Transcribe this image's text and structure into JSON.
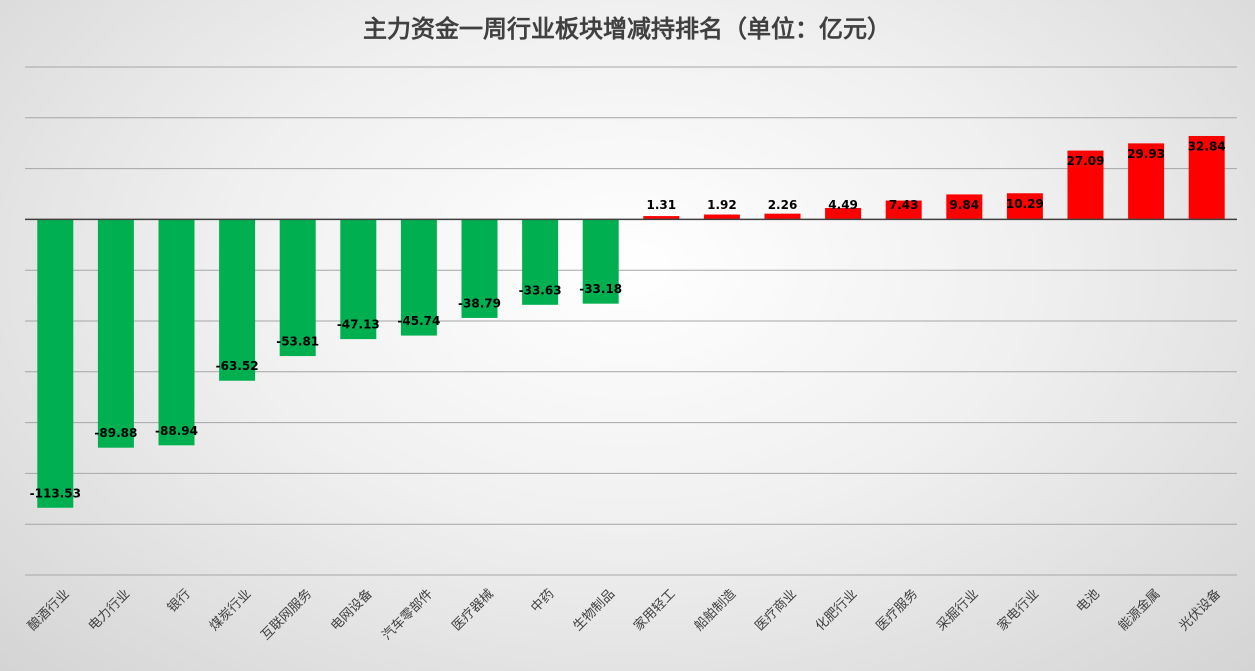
{
  "chart_data": {
    "type": "bar",
    "title": "主力资金一周行业板块增减持排名（单位：亿元）",
    "categories": [
      "酿酒行业",
      "电力行业",
      "银行",
      "煤炭行业",
      "互联网服务",
      "电网设备",
      "汽车零部件",
      "医疗器械",
      "中药",
      "生物制品",
      "家用轻工",
      "船舶制造",
      "医疗商业",
      "化肥行业",
      "医疗服务",
      "采掘行业",
      "家电行业",
      "电池",
      "能源金属",
      "光伏设备"
    ],
    "values": [
      -113.53,
      -89.88,
      -88.94,
      -63.52,
      -53.81,
      -47.13,
      -45.74,
      -38.79,
      -33.63,
      -33.18,
      1.31,
      1.92,
      2.26,
      4.49,
      7.43,
      9.84,
      10.29,
      27.09,
      29.93,
      32.84
    ],
    "colors": [
      "#00b050",
      "#00b050",
      "#00b050",
      "#00b050",
      "#00b050",
      "#00b050",
      "#00b050",
      "#00b050",
      "#00b050",
      "#00b050",
      "#ff0000",
      "#ff0000",
      "#ff0000",
      "#ff0000",
      "#ff0000",
      "#ff0000",
      "#ff0000",
      "#ff0000",
      "#ff0000",
      "#ff0000"
    ],
    "ylim": [
      -140,
      60
    ],
    "yticks": [
      -140,
      -120,
      -100,
      -80,
      -60,
      -40,
      -20,
      0,
      20,
      40,
      60
    ],
    "grid": true
  }
}
